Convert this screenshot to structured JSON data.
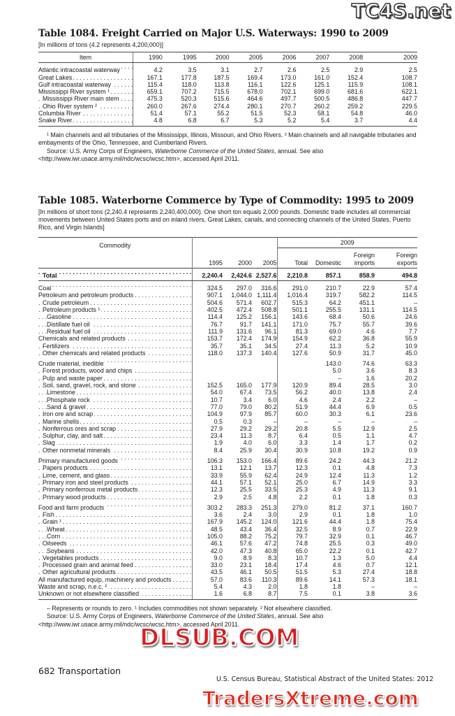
{
  "table1084": {
    "title": "Table 1084. Freight Carried on Major U.S. Waterways: 1990 to 2009",
    "headnote": "[In millions of tons (4.2 represents 4,200,000)]",
    "columns": [
      "Item",
      "1990",
      "1995",
      "2000",
      "2005",
      "2006",
      "2007",
      "2008",
      "2009"
    ],
    "rows": [
      {
        "label": "Atlantic intracoastal waterway",
        "indent": 0,
        "values": [
          "4.2",
          "3.5",
          "3.1",
          "2.7",
          "2.6",
          "2.5",
          "2.9",
          "2.5"
        ]
      },
      {
        "label": "Great Lakes",
        "indent": 0,
        "values": [
          "167.1",
          "177.8",
          "187.5",
          "169.4",
          "173.0",
          "161.0",
          "152.4",
          "108.7"
        ]
      },
      {
        "label": "Gulf intracoastal waterway",
        "indent": 0,
        "values": [
          "115.4",
          "118.0",
          "113.8",
          "116.1",
          "122.6",
          "125.1",
          "115.9",
          "108.1"
        ]
      },
      {
        "label": "Mississippi River system ¹",
        "indent": 0,
        "values": [
          "659.1",
          "707.2",
          "715.5",
          "678.0",
          "702.1",
          "699.0",
          "681.6",
          "622.1"
        ]
      },
      {
        "label": "Mississippi River main stem",
        "indent": 1,
        "values": [
          "475.3",
          "520.3",
          "515.6",
          "464.6",
          "497.7",
          "500.5",
          "486.8",
          "447.7"
        ]
      },
      {
        "label": "Ohio River system ²",
        "indent": 1,
        "values": [
          "260.0",
          "267.6",
          "274.4",
          "280.1",
          "270.7",
          "260.2",
          "259.2",
          "229.5"
        ]
      },
      {
        "label": "Columbia River",
        "indent": 0,
        "values": [
          "51.4",
          "57.1",
          "55.2",
          "51.5",
          "52.3",
          "58.1",
          "54.8",
          "46.0"
        ]
      },
      {
        "label": "Snake River",
        "indent": 0,
        "values": [
          "4.8",
          "6.8",
          "6.7",
          "5.3",
          "5.2",
          "5.4",
          "3.7",
          "4.4"
        ]
      }
    ],
    "footnote": "¹ Main channels and all tributaries of the Mississippi, Illinois, Missouri, and Ohio Rivers. ² Main channels and all navigable tributaries and embayments of the Ohio, Tennessee, and Cumberland Rivers.",
    "source_prefix": "Source: U.S. Army Corps of Engineers, ",
    "source_italic": "Waterborne Commerce of the United States",
    "source_suffix": ", annual. See also <http://www.iwr.usace.army.mil/ndc/wcsc/wcsc.htm>, accessed April 2011."
  },
  "table1085": {
    "title": "Table 1085. Waterborne Commerce by Type of Commodity: 1995 to 2009",
    "headnote": "[In millions of short tons (2,240.4 represents 2,240,400,000). One short ton equals 2,000 pounds. Domestic trade includes all commercial movements between United States ports and on inland rivers, Great Lakes, canals, and connecting channels of the United States, Puerto Rico, and Virgin Islands]",
    "header": {
      "commodity": "Commodity",
      "group_2009": "2009",
      "columns": [
        "1995",
        "2000",
        "2005",
        "Total",
        "Domestic",
        "Foreign imports",
        "Foreign exports"
      ]
    },
    "rows": [
      {
        "label": "Total",
        "indent": 1,
        "bold": true,
        "values": [
          "2,240.4",
          "2,424.6",
          "2,527.6",
          "2,210.8",
          "857.1",
          "858.9",
          "494.8"
        ]
      },
      {
        "label": "Coal",
        "indent": 0,
        "gap": true,
        "values": [
          "324.5",
          "297.0",
          "316.6",
          "291.0",
          "210.7",
          "22.9",
          "57.4"
        ]
      },
      {
        "label": "Petroleum and petroleum products",
        "indent": 0,
        "values": [
          "907.1",
          "1,044.0",
          "1,111.4",
          "1,016.4",
          "319.7",
          "582.2",
          "114.5"
        ]
      },
      {
        "label": "Crude petroleum",
        "indent": 1,
        "values": [
          "504.6",
          "571.4",
          "602.7",
          "515.3",
          "64.2",
          "451.1",
          "–"
        ]
      },
      {
        "label": "Petroleum products ¹",
        "indent": 1,
        "values": [
          "402.5",
          "472.4",
          "508.8",
          "501.1",
          "255.5",
          "131.1",
          "114.5"
        ]
      },
      {
        "label": "Gasoline",
        "indent": 2,
        "values": [
          "114.4",
          "125.2",
          "156.1",
          "143.6",
          "68.4",
          "50.6",
          "24.6"
        ]
      },
      {
        "label": "Distillate fuel oil",
        "indent": 2,
        "values": [
          "76.7",
          "91.7",
          "141.1",
          "171.0",
          "75.7",
          "55.7",
          "39.6"
        ]
      },
      {
        "label": "Residual fuel oil",
        "indent": 2,
        "values": [
          "111.9",
          "131.6",
          "96.1",
          "81.3",
          "69.0",
          "4.6",
          "7.7"
        ]
      },
      {
        "label": "Chemicals and related products",
        "indent": 0,
        "values": [
          "153.7",
          "172.4",
          "174.9",
          "154.9",
          "62.2",
          "36.8",
          "55.9"
        ]
      },
      {
        "label": "Fertilizers",
        "indent": 1,
        "values": [
          "35.7",
          "35.1",
          "34.5",
          "27.4",
          "11.3",
          "5.2",
          "10.9"
        ]
      },
      {
        "label": "Other chemicals and related products",
        "indent": 1,
        "values": [
          "118.0",
          "137.3",
          "140.4",
          "127.6",
          "50.9",
          "31.7",
          "45.0"
        ]
      },
      {
        "label": "Crude material, inedible",
        "indent": 0,
        "gap": true,
        "values": [
          "",
          "",
          "",
          "",
          "143.0",
          "74.6",
          "63.3"
        ]
      },
      {
        "label": "Forest products, wood and chips",
        "indent": 1,
        "values": [
          "",
          "",
          "",
          "",
          "5.0",
          "3.6",
          "8.3"
        ]
      },
      {
        "label": "Pulp and waste paper",
        "indent": 1,
        "values": [
          "",
          "",
          "",
          "",
          "–",
          "1.6",
          "20.2"
        ]
      },
      {
        "label": "Soil, sand, gravel, rock, and stone",
        "indent": 1,
        "values": [
          "152.5",
          "165.0",
          "177.9",
          "120.9",
          "89.4",
          "28.5",
          "3.0"
        ]
      },
      {
        "label": "Limestone",
        "indent": 2,
        "values": [
          "54.0",
          "67.4",
          "73.5",
          "56.2",
          "40.0",
          "13.8",
          "2.4"
        ]
      },
      {
        "label": "Phosphate rock",
        "indent": 2,
        "values": [
          "10.7",
          "3.4",
          "6.0",
          "4.6",
          "2.4",
          "2.2",
          "–"
        ]
      },
      {
        "label": "Sand & gravel",
        "indent": 2,
        "values": [
          "77.0",
          "79.0",
          "80.2",
          "51.9",
          "44.4",
          "6.9",
          "0.5"
        ]
      },
      {
        "label": "Iron ore and scrap",
        "indent": 1,
        "values": [
          "104.9",
          "97.9",
          "85.7",
          "60.0",
          "30.3",
          "6.1",
          "23.6"
        ]
      },
      {
        "label": "Marine shells",
        "indent": 1,
        "values": [
          "0.5",
          "0.3",
          "–",
          "–",
          "–",
          "–",
          "–"
        ]
      },
      {
        "label": "Nonferrous ores and scrap",
        "indent": 1,
        "values": [
          "27.9",
          "29.2",
          "29.2",
          "20.8",
          "5.5",
          "12.9",
          "2.5"
        ]
      },
      {
        "label": "Sulphur, clay, and salt",
        "indent": 1,
        "values": [
          "23.4",
          "11.3",
          "8.7",
          "6.4",
          "0.5",
          "1.1",
          "4.7"
        ]
      },
      {
        "label": "Slag",
        "indent": 1,
        "values": [
          "1.9",
          "4.0",
          "6.0",
          "3.3",
          "1.4",
          "1.7",
          "0.2"
        ]
      },
      {
        "label": "Other nonmetal minerals",
        "indent": 1,
        "values": [
          "8.4",
          "25.9",
          "30.4",
          "30.9",
          "10.8",
          "19.2",
          "0.9"
        ]
      },
      {
        "label": "Primary manufactured goods",
        "indent": 0,
        "gap": true,
        "values": [
          "106.3",
          "153.0",
          "166.4",
          "89.6",
          "24.2",
          "44.3",
          "21.2"
        ]
      },
      {
        "label": "Papers products",
        "indent": 1,
        "values": [
          "13.1",
          "12.1",
          "13.7",
          "12.3",
          "0.1",
          "4.8",
          "7.3"
        ]
      },
      {
        "label": "Lime, cement, and glass",
        "indent": 1,
        "values": [
          "33.9",
          "55.9",
          "62.4",
          "24.9",
          "12.4",
          "11.3",
          "1.2"
        ]
      },
      {
        "label": "Primary iron and steel products",
        "indent": 1,
        "values": [
          "44.1",
          "57.1",
          "52.1",
          "25.0",
          "6.7",
          "14.9",
          "3.3"
        ]
      },
      {
        "label": "Primary nonferrous metal products",
        "indent": 1,
        "values": [
          "12.3",
          "25.5",
          "33.5",
          "25.3",
          "4.9",
          "11.3",
          "9.1"
        ]
      },
      {
        "label": "Primary wood products",
        "indent": 1,
        "values": [
          "2.9",
          "2.5",
          "4.8",
          "2.2",
          "0.1",
          "1.8",
          "0.3"
        ]
      },
      {
        "label": "Food and farm products",
        "indent": 0,
        "gap": true,
        "values": [
          "303.2",
          "283.3",
          "251.3",
          "279.0",
          "81.2",
          "37.1",
          "160.7"
        ]
      },
      {
        "label": "Fish",
        "indent": 1,
        "values": [
          "3.6",
          "2.4",
          "3.0",
          "2.9",
          "0.1",
          "1.8",
          "1.0"
        ]
      },
      {
        "label": "Grain ¹",
        "indent": 1,
        "values": [
          "167.9",
          "145.2",
          "124.0",
          "121.6",
          "44.4",
          "1.8",
          "75.4"
        ]
      },
      {
        "label": "Wheat",
        "indent": 2,
        "values": [
          "48.5",
          "43.4",
          "36.4",
          "32.5",
          "8.9",
          "0.7",
          "22.9"
        ]
      },
      {
        "label": "Corn",
        "indent": 2,
        "values": [
          "105.0",
          "88.2",
          "75.2",
          "79.7",
          "32.9",
          "0.1",
          "46.7"
        ]
      },
      {
        "label": "Oilseeds",
        "indent": 1,
        "values": [
          "46.1",
          "57.6",
          "47.2",
          "74.8",
          "25.5",
          "0.3",
          "49.0"
        ]
      },
      {
        "label": "Soybeans",
        "indent": 2,
        "values": [
          "42.0",
          "47.3",
          "40.8",
          "65.0",
          "22.2",
          "0.1",
          "42.7"
        ]
      },
      {
        "label": "Vegetables products",
        "indent": 1,
        "values": [
          "9.0",
          "8.9",
          "8.3",
          "10.7",
          "1.3",
          "5.0",
          "4.4"
        ]
      },
      {
        "label": "Processed grain and animal feed",
        "indent": 1,
        "values": [
          "33.0",
          "23.1",
          "18.4",
          "17.4",
          "4.6",
          "0.7",
          "12.1"
        ]
      },
      {
        "label": "Other agricultural products",
        "indent": 1,
        "values": [
          "43.5",
          "46.1",
          "50.5",
          "51.5",
          "5.3",
          "27.4",
          "18.8"
        ]
      },
      {
        "label": "All manufactured equip, machinery and products",
        "indent": 0,
        "values": [
          "57.0",
          "83.6",
          "110.3",
          "89.6",
          "14.1",
          "57.3",
          "18.1"
        ]
      },
      {
        "label": "Waste and scrap, n.e.c. ²",
        "indent": 0,
        "values": [
          "5.4",
          "4.3",
          "2.0",
          "1.8",
          "1.8",
          "–",
          "–"
        ]
      },
      {
        "label": "Unknown or not elsewhere classified",
        "indent": 0,
        "values": [
          "1.6",
          "6.8",
          "8.7",
          "7.5",
          "0.1",
          "3.8",
          "3.6"
        ]
      }
    ],
    "footnote": "– Represents or rounds to zero. ¹ Includes commodities not shown separately. ² Not elsewhere classified.",
    "source_prefix": "Source: U.S. Army Corps of Engineers, ",
    "source_italic": "Waterborne Commerce of the United States",
    "source_suffix": ", annual. See also <http://www.iwr.usace.army.mil/ndc/wcsc/wcsc.htm>, accessed April 2011."
  },
  "footer": {
    "page_label": "682  Transportation",
    "publication": "U.S. Census Bureau, Statistical Abstract of the United States: 2012"
  },
  "watermarks": {
    "top": "TC4S.net",
    "middle": "DLSUB.COM",
    "bottom": "TradersXtreme.com"
  },
  "colors": {
    "watermark_red": "#d42020",
    "watermark_dark": "#333333"
  }
}
